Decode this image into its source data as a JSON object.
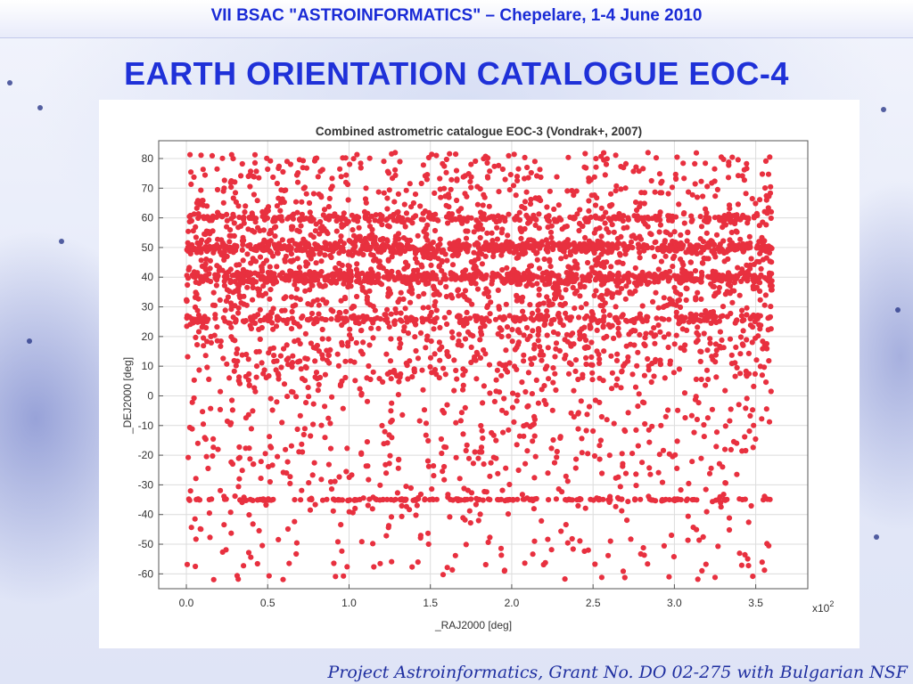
{
  "slide": {
    "conference": "VII BSAC  \"ASTROINFORMATICS\" – Chepelare, 1-4 June 2010",
    "title": "EARTH ORIENTATION CATALOGUE  EOC-4",
    "footer": "Project Astroinformatics, Grant No. DO 02-275 with Bulgarian NSF"
  },
  "chart_data": {
    "type": "scatter",
    "title": "Combined astrometric catalogue EOC-3 (Vondrak+, 2007)",
    "xlabel": "_RAJ2000 [deg]",
    "ylabel": "_DEJ2000 [deg]",
    "x_scale_note": "x10",
    "x_scale_exponent": "2",
    "xlim": [
      -0.17,
      3.82
    ],
    "ylim": [
      -65,
      86
    ],
    "xticks": [
      "0.0",
      "0.5",
      "1.0",
      "1.5",
      "2.0",
      "2.5",
      "3.0",
      "3.5"
    ],
    "yticks": [
      "80",
      "70",
      "60",
      "50",
      "40",
      "30",
      "20",
      "10",
      "0",
      "-10",
      "-20",
      "-30",
      "-40",
      "-50",
      "-60"
    ],
    "grid": true,
    "marker_color": "#e8303f",
    "series": [
      {
        "values_description": "approx. 4000 stars scattered over RA 0-360 deg, Dec -62 to +82 deg, with dense bands",
        "bands": [
          {
            "dec": 50,
            "density": "high"
          },
          {
            "dec": 40,
            "density": "high"
          },
          {
            "dec": 60,
            "density": "medium"
          },
          {
            "dec": 26,
            "density": "medium"
          },
          {
            "dec": -35,
            "density": "line"
          }
        ],
        "x_range": [
          0,
          3.6
        ],
        "y_range": [
          -62,
          82
        ]
      }
    ]
  }
}
